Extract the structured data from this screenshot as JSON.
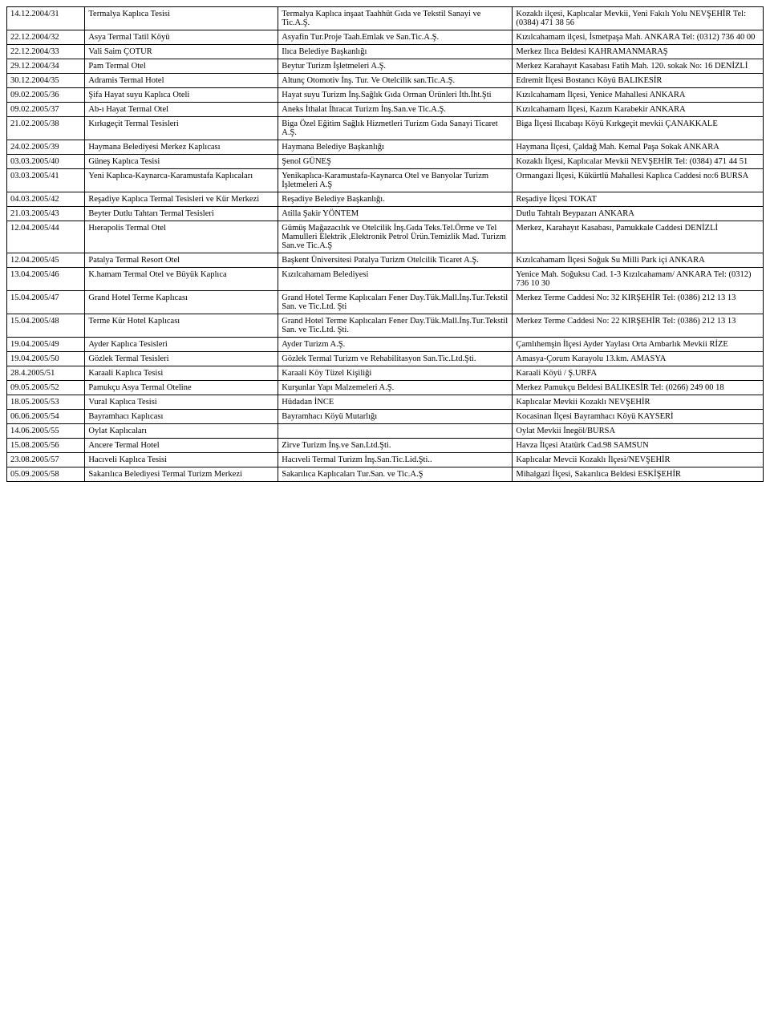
{
  "rows": [
    {
      "c1": "14.12.2004/31",
      "c2": "Termalya Kaplıca Tesisi",
      "c3": "Termalya Kaplıca inşaat Taahhüt Gıda ve Tekstil Sanayi ve Tic.A.Ş.",
      "c4": "Kozaklı ilçesi, Kaplıcalar Mevkii, Yeni Fakılı Yolu NEVŞEHİR Tel: (0384) 471 38 56"
    },
    {
      "c1": "22.12.2004/32",
      "c2": "Asya Termal Tatil Köyü",
      "c3": "Asyafin Tur.Proje Taah.Emlak ve San.Tic.A.Ş.",
      "c4": "Kızılcahamam ilçesi, İsmetpaşa Mah. ANKARA Tel: (0312) 736 40 00"
    },
    {
      "c1": "22.12.2004/33",
      "c2": "Vali Saim ÇOTUR",
      "c3": "Ilıca Belediye Başkanlığı",
      "c4": "Merkez Ilıca Beldesi KAHRAMANMARAŞ"
    },
    {
      "c1": "29.12.2004/34",
      "c2": "Pam Termal Otel",
      "c3": "Beytur Turizm İşletmeleri A.Ş.",
      "c4": "Merkez Karahayıt Kasabası Fatih Mah. 120. sokak No: 16  DENİZLİ"
    },
    {
      "c1": "30.12.2004/35",
      "c2": "Adramis Termal Hotel",
      "c3": "Altunç Otomotiv İnş. Tur. Ve Otelcilik san.Tic.A.Ş.",
      "c4": "Edremit İlçesi Bostancı Köyü BALIKESİR"
    },
    {
      "c1": "09.02.2005/36",
      "c2": "Şifa Hayat suyu Kaplıca Oteli",
      "c3": "Hayat suyu Turizm İnş.Sağlık Gıda Orman Ürünleri İth.İht.Şti",
      "c4": "Kızılcahamam İlçesi, Yenice Mahallesi ANKARA"
    },
    {
      "c1": "09.02.2005/37",
      "c2": "Ab-ı Hayat Termal Otel",
      "c3": "Aneks İthalat İhracat Turizm İnş.San.ve Tic.A.Ş.",
      "c4": "Kızılcahamam İlçesi, Kazım Karabekir ANKARA"
    },
    {
      "c1": "21.02.2005/38",
      "c2": "Kırkıgeçit Termal Tesisleri",
      "c3": "Biga Özel Eğitim Sağlık Hizmetleri Turizm Gıda Sanayi Ticaret A.Ş.",
      "c4": "Biga İlçesi Ilıcabaşı Köyü Kırkgeçit mevkii ÇANAKKALE"
    },
    {
      "c1": "24.02.2005/39",
      "c2": "Haymana Belediyesi Merkez Kaplıcası",
      "c3": "Haymana Belediye Başkanlığı",
      "c4": "Haymana İlçesi, Çaldağ Mah. Kemal Paşa Sokak   ANKARA"
    },
    {
      "c1": "03.03.2005/40",
      "c2": "Güneş Kaplıca Tesisi",
      "c3": "Şenol GÜNEŞ",
      "c4": "Kozaklı İlçesi, Kaplıcalar Mevkii NEVŞEHİR Tel: (0384) 471 44 51"
    },
    {
      "c1": "03.03.2005/41",
      "c2": "Yeni Kaplıca-Kaynarca-Karamustafa Kaplıcaları",
      "c3": "Yenikaplıca-Karamustafa-Kaynarca Otel ve Banyolar Turizm İşletmeleri A.Ş",
      "c4": "Ormangazi İlçesi, Kükürtlü Mahallesi Kaplıca Caddesi no:6  BURSA"
    },
    {
      "c1": "04.03.2005/42",
      "c2": "Reşadiye Kaplıca Termal Tesisleri ve Kür Merkezi",
      "c3": "Reşadiye Belediye Başkanlığı.",
      "c4": "Reşadiye İlçesi TOKAT"
    },
    {
      "c1": "21.03.2005/43",
      "c2": "Beyter Dutlu Tahtarı Termal Tesisleri",
      "c3": "Atilla  Şakir YÖNTEM",
      "c4": "Dutlu Tahtalı Beypazarı ANKARA"
    },
    {
      "c1": "12.04.2005/44",
      "c2": "Hıerapolis Termal Otel",
      "c3": "Gümüş Mağazacılık ve Otelcilik İnş.Gıda Teks.Tel.Örme ve Tel Mamulleri Elektrik ,Elektronik Petrol Ürün.Temizlik Mad. Turizm San.ve Tic.A.Ş",
      "c4": "Merkez, Karahayıt Kasabası, Pamukkale Caddesi DENİZLİ"
    },
    {
      "c1": "12.04.2005/45",
      "c2": "Patalya Termal Resort Otel",
      "c3": "Başkent Üniversitesi Patalya Turizm Otelcilik Ticaret A.Ş.",
      "c4": "Kızılcahamam İlçesi Soğuk Su Milli Park içi ANKARA"
    },
    {
      "c1": "13.04.2005/46",
      "c2": "K.hamam Termal Otel ve Büyük Kaplıca",
      "c3": "Kızılcahamam Belediyesi",
      "c4": "Yenice Mah. Soğuksu Cad. 1-3 Kızılcahamam/ ANKARA    Tel: (0312) 736 10 30"
    },
    {
      "c1": "15.04.2005/47",
      "c2": "Grand Hotel Terme Kaplıcası",
      "c3": "Grand Hotel Terme Kaplıcaları Fener Day.Tük.Mall.İnş.Tur.Tekstil San. ve Tic.Ltd. Şti",
      "c4": "Merkez Terme Caddesi No: 32 KIRŞEHİR Tel: (0386) 212 13 13"
    },
    {
      "c1": "15.04.2005/48",
      "c2": "Terme Kür Hotel Kaplıcası",
      "c3": "Grand Hotel Terme Kaplıcaları Fener Day.Tük.Mall.İnş.Tur.Tekstil San. ve Tic.Ltd. Şti.",
      "c4": "Merkez Terme Caddesi No: 22 KIRŞEHİR Tel: (0386) 212 13 13"
    },
    {
      "c1": "19.04.2005/49",
      "c2": "Ayder Kaplıca Tesisleri",
      "c3": "Ayder Turizm A.Ş.",
      "c4": "Çamlıhemşin İlçesi Ayder Yaylası Orta Ambarlık Mevkii RİZE"
    },
    {
      "c1": "19.04.2005/50",
      "c2": "Gözlek Termal Tesisleri",
      "c3": "Gözlek Termal Turizm ve Rehabilitasyon San.Tic.Ltd.Şti.",
      "c4": "Amasya-Çorum Karayolu 13.km. AMASYA"
    },
    {
      "c1": "28.4.2005/51",
      "c2": "Karaali Kaplıca Tesisi",
      "c3": "Karaali Köy Tüzel Kişiliği",
      "c4": "Karaali Köyü / Ş.URFA"
    },
    {
      "c1": "09.05.2005/52",
      "c2": "Pamukçu Asya Termal Oteline",
      "c3": " Kurşunlar Yapı Malzemeleri A.Ş.",
      "c4": " Merkez Pamukçu Beldesi BALIKESİR Tel: (0266) 249 00 18"
    },
    {
      "c1": "18.05.2005/53",
      "c2": "Vural Kaplıca Tesisi",
      "c3": "Hüdadan İNCE",
      "c4": "Kaplıcalar Mevkii Kozaklı NEVŞEHİR"
    },
    {
      "c1": "06.06.2005/54",
      "c2": "Bayramhacı Kaplıcası",
      "c3": "Bayramhacı Köyü Mutarlığı",
      "c4": "Kocasinan İlçesi Bayramhacı Köyü KAYSERİ"
    },
    {
      "c1": "14.06.2005/55",
      "c2": "Oylat Kaplıcaları",
      "c3": "",
      "c4": "Oylat Mevkii İnegöl/BURSA"
    },
    {
      "c1": "15.08.2005/56",
      "c2": "Ancere Termal Hotel",
      "c3": "Zirve Turizm İnş.ve San.Ltd.Şti.",
      "c4": "Havza İlçesi Atatürk Cad.98 SAMSUN"
    },
    {
      "c1": "23.08.2005/57",
      "c2": "Hacıveli Kaplıca Tesisi",
      "c3": "Hacıveli Termal Turizm İnş.San.Tic.Lid.Şti..",
      "c4": "Kaplıcalar Mevcii Kozaklı İlçesi/NEVŞEHİR"
    },
    {
      "c1": "05.09.2005/58",
      "c2": "Sakarılıca Belediyesi Termal Turizm Merkezi",
      "c3": " Sakarılıca Kaplıcaları Tur.San. ve Tic.A.Ş",
      "c4": "Mihalgazi İlçesi, Sakarılıca Beldesi ESKİŞEHİR"
    }
  ]
}
